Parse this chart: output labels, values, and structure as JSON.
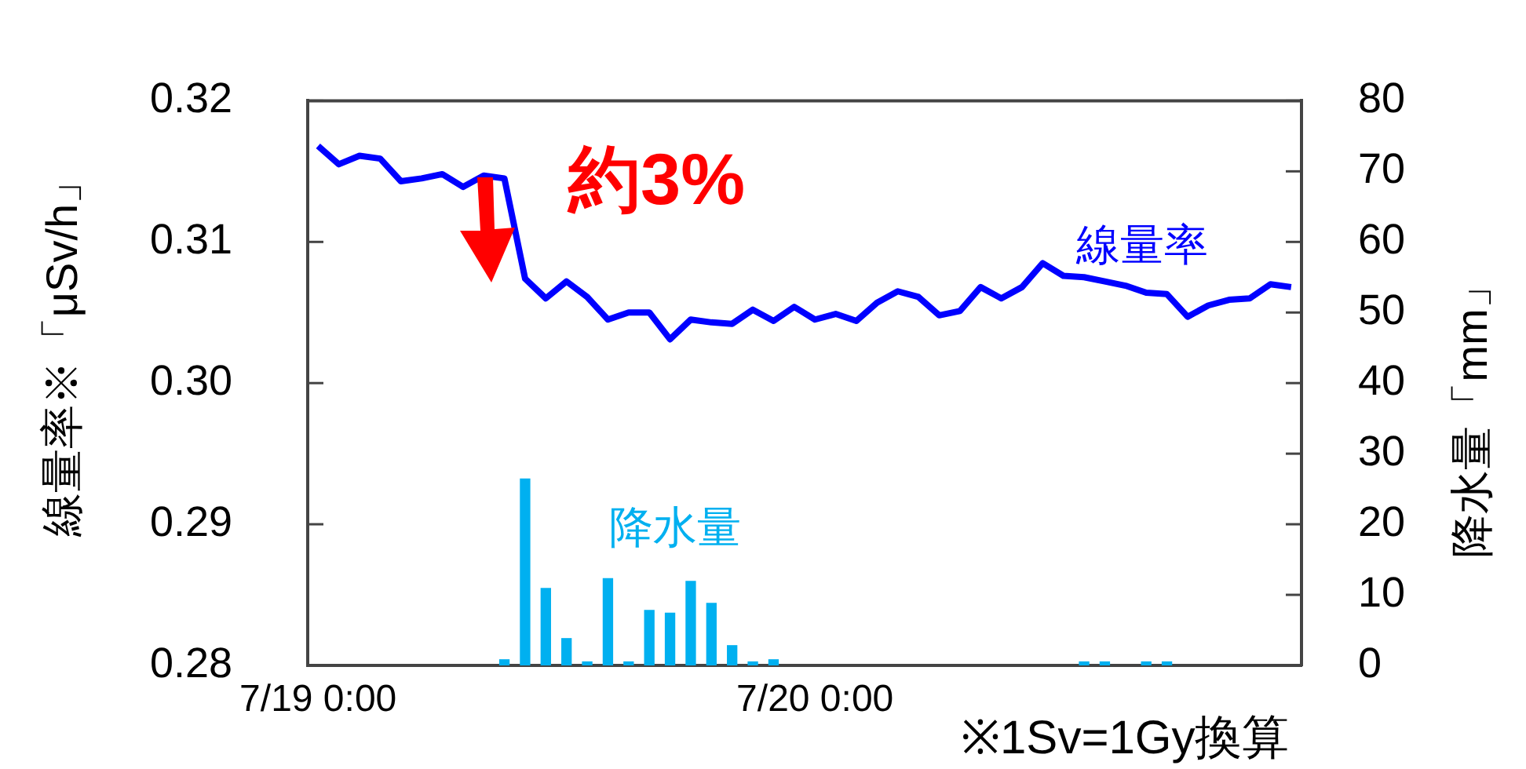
{
  "chart_data": {
    "type": "line",
    "ylabel": "線量率※「μSv/h」",
    "y2label": "降水量「mm」",
    "annotations": [
      "約3%",
      "※1Sv=1Gy換算"
    ],
    "categories": [
      "7/19 0:00",
      null,
      null,
      null,
      null,
      null,
      null,
      null,
      null,
      null,
      null,
      null,
      null,
      null,
      null,
      null,
      null,
      null,
      null,
      null,
      null,
      null,
      null,
      null,
      "7/20 0:00",
      null,
      null,
      null,
      null,
      null,
      null,
      null,
      null,
      null,
      null,
      null,
      null,
      null,
      null,
      null,
      null,
      null,
      null,
      null,
      null,
      null,
      null,
      null
    ],
    "ylim": [
      0.28,
      0.32
    ],
    "yticks": [
      0.28,
      0.29,
      {
        "value": 0.3,
        "label": "0.30"
      },
      0.31,
      0.32
    ],
    "y2lim": [
      0,
      80
    ],
    "y2ticks": [
      0,
      10,
      20,
      30,
      40,
      50,
      60,
      70,
      80
    ],
    "grid": false,
    "legend": false,
    "marker": "none",
    "series": [
      {
        "name": "降水量",
        "type": "bar",
        "axis": "y2",
        "color": "#00b0f0",
        "values": [
          null,
          null,
          null,
          null,
          null,
          null,
          null,
          null,
          null,
          0.8,
          26.4,
          10.9,
          3.8,
          0.5,
          12.3,
          0.5,
          7.8,
          7.4,
          11.9,
          8.8,
          2.8,
          0.5,
          0.8,
          null,
          null,
          null,
          null,
          null,
          null,
          null,
          null,
          null,
          null,
          null,
          null,
          null,
          null,
          0.5,
          0.5,
          null,
          0.5,
          0.5,
          null,
          null,
          null,
          null,
          null,
          null
        ]
      },
      {
        "name": "線量率",
        "color": "#0000ff",
        "values": [
          0.3168,
          0.3155,
          0.3161,
          0.3159,
          0.3143,
          0.3145,
          0.3148,
          0.3139,
          0.3147,
          0.3145,
          0.3074,
          0.306,
          0.3072,
          0.3061,
          0.3045,
          0.305,
          0.305,
          0.3031,
          0.3045,
          0.3043,
          0.3042,
          0.3052,
          0.3044,
          0.3054,
          0.3045,
          0.3049,
          0.3044,
          0.3057,
          0.3065,
          0.3061,
          0.3048,
          0.3051,
          0.3068,
          0.306,
          0.3068,
          0.3085,
          0.3076,
          0.3075,
          0.3072,
          0.3069,
          0.3064,
          0.3063,
          0.3047,
          0.3055,
          0.3059,
          0.306,
          0.307,
          0.3068
        ]
      }
    ]
  }
}
